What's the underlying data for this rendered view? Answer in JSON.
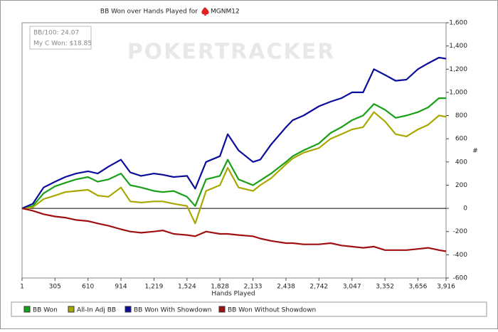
{
  "chart_data": {
    "type": "line",
    "title": "BB Won over Hands Played for",
    "player": "MGNM12",
    "watermark": "POKERTRACKER",
    "info": [
      "BB/100: 24.07",
      "My C Won: $18.85"
    ],
    "x_label": "Hands Played",
    "y_label": "#",
    "x": [
      1,
      100,
      200,
      305,
      400,
      500,
      610,
      700,
      800,
      914,
      1000,
      1100,
      1219,
      1300,
      1400,
      1524,
      1600,
      1700,
      1828,
      1900,
      2000,
      2133,
      2200,
      2300,
      2438,
      2500,
      2600,
      2742,
      2850,
      2950,
      3047,
      3150,
      3250,
      3352,
      3450,
      3550,
      3656,
      3750,
      3850,
      3916
    ],
    "series": [
      {
        "name": "BB Won",
        "color": "#18a018",
        "values": [
          0,
          20,
          130,
          190,
          220,
          250,
          270,
          230,
          250,
          300,
          200,
          180,
          150,
          140,
          150,
          100,
          20,
          250,
          280,
          420,
          250,
          200,
          240,
          300,
          400,
          450,
          500,
          560,
          650,
          700,
          760,
          800,
          900,
          850,
          780,
          800,
          830,
          870,
          950,
          950
        ]
      },
      {
        "name": "All-In Adj BB",
        "color": "#a8a800",
        "values": [
          0,
          10,
          80,
          110,
          140,
          150,
          160,
          110,
          100,
          180,
          60,
          50,
          60,
          60,
          40,
          20,
          -130,
          150,
          200,
          350,
          180,
          150,
          200,
          260,
          380,
          430,
          480,
          520,
          600,
          640,
          680,
          700,
          830,
          750,
          640,
          620,
          680,
          720,
          800,
          790
        ]
      },
      {
        "name": "BB Won With Showdown",
        "color": "#0c0c9c",
        "values": [
          0,
          40,
          180,
          230,
          270,
          300,
          320,
          300,
          360,
          420,
          310,
          280,
          300,
          290,
          270,
          280,
          170,
          400,
          450,
          640,
          500,
          400,
          420,
          550,
          700,
          760,
          800,
          880,
          920,
          950,
          1000,
          1000,
          1200,
          1150,
          1100,
          1110,
          1200,
          1250,
          1300,
          1290
        ]
      },
      {
        "name": "BB Won Without Showdown",
        "color": "#a01010",
        "values": [
          0,
          -20,
          -50,
          -70,
          -80,
          -100,
          -110,
          -130,
          -150,
          -180,
          -200,
          -210,
          -200,
          -190,
          -220,
          -230,
          -240,
          -200,
          -220,
          -220,
          -230,
          -240,
          -260,
          -280,
          -300,
          -300,
          -310,
          -310,
          -300,
          -320,
          -330,
          -340,
          -330,
          -360,
          -360,
          -360,
          -350,
          -340,
          -360,
          -370
        ]
      }
    ],
    "xlim": [
      1,
      3916
    ],
    "xticks": [
      1,
      305,
      610,
      914,
      {
        "value": 1219,
        "label": "1,219"
      },
      {
        "value": 1524,
        "label": "1,524"
      },
      {
        "value": 1828,
        "label": "1,828"
      },
      {
        "value": 2133,
        "label": "2,133"
      },
      {
        "value": 2438,
        "label": "2,438"
      },
      {
        "value": 2742,
        "label": "2,742"
      },
      {
        "value": 3047,
        "label": "3,047"
      },
      {
        "value": 3352,
        "label": "3,352"
      },
      {
        "value": 3656,
        "label": "3,656"
      },
      {
        "value": 3916,
        "label": "3,916"
      }
    ],
    "ylim": [
      -600,
      1600
    ],
    "yticks": [
      -600,
      -400,
      -200,
      0,
      200,
      400,
      600,
      800,
      {
        "value": 1000,
        "label": "1,000"
      },
      {
        "value": 1200,
        "label": "1,200"
      },
      {
        "value": 1400,
        "label": "1,400"
      },
      {
        "value": 1600,
        "label": "1,600"
      }
    ]
  }
}
